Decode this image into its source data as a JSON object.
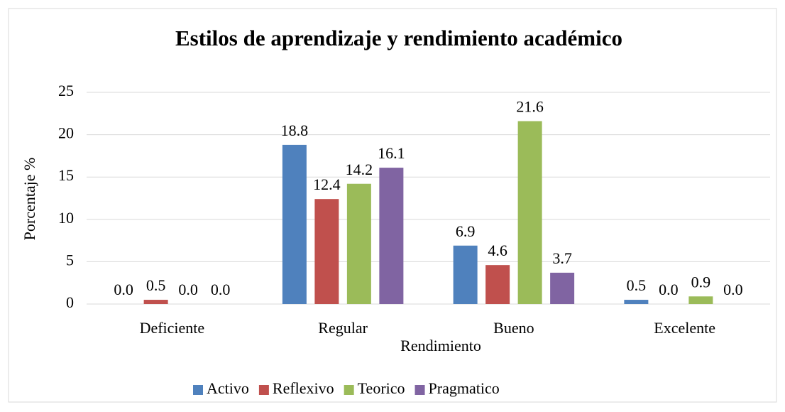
{
  "chart_data": {
    "type": "bar",
    "title": "Estilos de aprendizaje y rendimiento académico",
    "x_label": "Rendimiento",
    "y_label": "Porcentaje %",
    "categories": [
      "Deficiente",
      "Regular",
      "Bueno",
      "Excelente"
    ],
    "series": [
      {
        "name": "Activo",
        "color": "#4f81bd",
        "values": [
          0,
          18.8,
          6.9,
          0.5
        ],
        "value_labels": [
          "0.0",
          "18.8",
          "6.9",
          "0.5"
        ]
      },
      {
        "name": "Reflexivo",
        "color": "#c0504d",
        "values": [
          0.5,
          12.4,
          4.6,
          0
        ],
        "value_labels": [
          "0.5",
          "12.4",
          "4.6",
          "0.0"
        ]
      },
      {
        "name": "Teorico",
        "color": "#9bbb59",
        "values": [
          0,
          14.2,
          21.6,
          0.9
        ],
        "value_labels": [
          "0.0",
          "14.2",
          "21.6",
          "0.9"
        ]
      },
      {
        "name": "Pragmatico",
        "color": "#8064a2",
        "values": [
          0,
          16.1,
          3.7,
          0
        ],
        "value_labels": [
          "0.0",
          "16.1",
          "3.7",
          "0.0"
        ]
      }
    ],
    "ylim": [
      0,
      25
    ],
    "yticks": [
      0,
      5,
      10,
      15,
      20,
      25
    ],
    "grid": true,
    "legend": "bottom"
  }
}
